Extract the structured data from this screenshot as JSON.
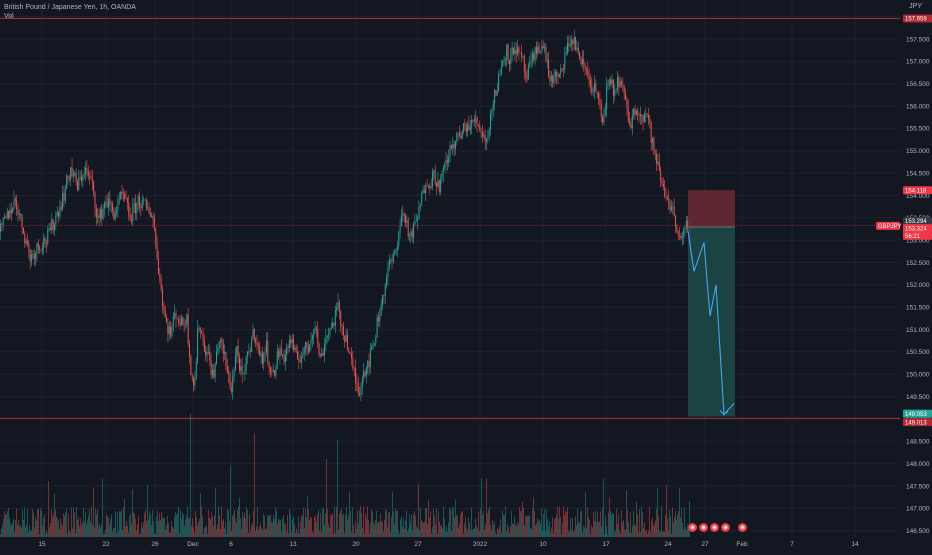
{
  "header": {
    "title": "British Pound / Japanese Yen, 1h, OANDA",
    "volume_label": "Vol",
    "currency": "JPY"
  },
  "colors": {
    "background": "#131722",
    "grid": "#1e222d",
    "up": "#26a69a",
    "down": "#ef5350",
    "resistance_line": "#b22833",
    "stop_zone": "#6b2a33",
    "target_zone": "#1c4b47",
    "projection": "#42a5f5"
  },
  "chart_data": {
    "type": "candlestick",
    "symbol": "GBPJPY",
    "timeframe": "1h",
    "ylim": [
      146.4,
      158.15
    ],
    "xlim": [
      0,
      932
    ],
    "y_ticks": [
      "158.000",
      "157.500",
      "157.000",
      "156.500",
      "156.000",
      "155.500",
      "155.000",
      "154.500",
      "154.000",
      "153.500",
      "153.000",
      "152.500",
      "152.000",
      "151.500",
      "151.000",
      "150.500",
      "150.000",
      "149.500",
      "149.000",
      "148.500",
      "148.000",
      "147.500",
      "147.000",
      "146.500"
    ],
    "x_ticks": [
      {
        "label": "15",
        "pos": 42
      },
      {
        "label": "22",
        "pos": 106
      },
      {
        "label": "26",
        "pos": 155
      },
      {
        "label": "Dec",
        "pos": 193
      },
      {
        "label": "6",
        "pos": 231
      },
      {
        "label": "13",
        "pos": 293
      },
      {
        "label": "20",
        "pos": 356
      },
      {
        "label": "27",
        "pos": 418
      },
      {
        "label": "2022",
        "pos": 480
      },
      {
        "label": "10",
        "pos": 543
      },
      {
        "label": "17",
        "pos": 606
      },
      {
        "label": "24",
        "pos": 668
      },
      {
        "label": "27",
        "pos": 705
      },
      {
        "label": "Feb",
        "pos": 742
      },
      {
        "label": "7",
        "pos": 792
      },
      {
        "label": "14",
        "pos": 855
      }
    ],
    "price_path": [
      [
        0,
        153.2
      ],
      [
        8,
        153.6
      ],
      [
        15,
        153.9
      ],
      [
        22,
        153.3
      ],
      [
        30,
        152.6
      ],
      [
        38,
        152.9
      ],
      [
        46,
        153.0
      ],
      [
        55,
        153.5
      ],
      [
        63,
        154.0
      ],
      [
        70,
        154.6
      ],
      [
        77,
        154.2
      ],
      [
        84,
        154.6
      ],
      [
        91,
        154.3
      ],
      [
        98,
        153.4
      ],
      [
        105,
        153.9
      ],
      [
        114,
        153.6
      ],
      [
        122,
        154.0
      ],
      [
        130,
        153.5
      ],
      [
        138,
        153.9
      ],
      [
        146,
        153.7
      ],
      [
        152,
        153.6
      ],
      [
        156,
        152.8
      ],
      [
        160,
        152.0
      ],
      [
        165,
        151.2
      ],
      [
        170,
        150.9
      ],
      [
        175,
        151.4
      ],
      [
        181,
        151.1
      ],
      [
        186,
        151.3
      ],
      [
        190,
        150.2
      ],
      [
        194,
        149.7
      ],
      [
        198,
        151.2
      ],
      [
        203,
        150.7
      ],
      [
        208,
        150.4
      ],
      [
        213,
        149.9
      ],
      [
        218,
        150.8
      ],
      [
        223,
        150.5
      ],
      [
        227,
        150.0
      ],
      [
        231,
        149.7
      ],
      [
        236,
        150.6
      ],
      [
        242,
        149.8
      ],
      [
        248,
        150.5
      ],
      [
        254,
        151.0
      ],
      [
        260,
        150.3
      ],
      [
        266,
        150.6
      ],
      [
        272,
        149.9
      ],
      [
        278,
        150.5
      ],
      [
        284,
        150.4
      ],
      [
        290,
        150.8
      ],
      [
        296,
        150.3
      ],
      [
        302,
        150.5
      ],
      [
        308,
        150.6
      ],
      [
        314,
        151.2
      ],
      [
        320,
        150.3
      ],
      [
        326,
        150.9
      ],
      [
        332,
        151.1
      ],
      [
        337,
        151.5
      ],
      [
        342,
        151.0
      ],
      [
        346,
        150.8
      ],
      [
        350,
        150.3
      ],
      [
        354,
        150.0
      ],
      [
        358,
        149.6
      ],
      [
        362,
        150.0
      ],
      [
        366,
        150.2
      ],
      [
        370,
        150.4
      ],
      [
        374,
        150.8
      ],
      [
        378,
        151.3
      ],
      [
        382,
        151.7
      ],
      [
        386,
        152.2
      ],
      [
        390,
        152.5
      ],
      [
        394,
        152.6
      ],
      [
        398,
        153.2
      ],
      [
        402,
        153.6
      ],
      [
        406,
        153.4
      ],
      [
        410,
        153.0
      ],
      [
        414,
        153.3
      ],
      [
        418,
        153.6
      ],
      [
        422,
        154.0
      ],
      [
        426,
        154.4
      ],
      [
        430,
        154.3
      ],
      [
        434,
        154.5
      ],
      [
        438,
        154.2
      ],
      [
        442,
        154.4
      ],
      [
        446,
        154.8
      ],
      [
        450,
        155.0
      ],
      [
        454,
        155.2
      ],
      [
        458,
        155.3
      ],
      [
        462,
        155.4
      ],
      [
        466,
        155.6
      ],
      [
        470,
        155.5
      ],
      [
        474,
        155.7
      ],
      [
        478,
        155.6
      ],
      [
        482,
        155.4
      ],
      [
        486,
        155.2
      ],
      [
        490,
        155.8
      ],
      [
        494,
        156.2
      ],
      [
        498,
        156.6
      ],
      [
        502,
        157.0
      ],
      [
        506,
        157.3
      ],
      [
        510,
        157.0
      ],
      [
        514,
        157.4
      ],
      [
        518,
        157.1
      ],
      [
        522,
        157.0
      ],
      [
        526,
        156.6
      ],
      [
        530,
        156.9
      ],
      [
        534,
        157.1
      ],
      [
        538,
        157.4
      ],
      [
        542,
        157.3
      ],
      [
        546,
        157.1
      ],
      [
        550,
        156.5
      ],
      [
        554,
        156.7
      ],
      [
        558,
        156.5
      ],
      [
        562,
        156.9
      ],
      [
        566,
        157.2
      ],
      [
        570,
        157.5
      ],
      [
        574,
        157.4
      ],
      [
        578,
        157.2
      ],
      [
        582,
        156.9
      ],
      [
        586,
        156.8
      ],
      [
        590,
        156.5
      ],
      [
        594,
        156.4
      ],
      [
        598,
        156.1
      ],
      [
        602,
        155.6
      ],
      [
        606,
        156.3
      ],
      [
        610,
        156.5
      ],
      [
        614,
        156.3
      ],
      [
        618,
        156.6
      ],
      [
        622,
        156.4
      ],
      [
        626,
        155.9
      ],
      [
        630,
        155.6
      ],
      [
        634,
        155.9
      ],
      [
        638,
        156.0
      ],
      [
        642,
        155.7
      ],
      [
        646,
        155.9
      ],
      [
        650,
        155.4
      ],
      [
        654,
        154.9
      ],
      [
        658,
        154.6
      ],
      [
        662,
        154.2
      ],
      [
        666,
        154.0
      ],
      [
        670,
        153.8
      ],
      [
        674,
        153.5
      ],
      [
        678,
        153.2
      ],
      [
        682,
        153.0
      ],
      [
        686,
        153.3
      ],
      [
        690,
        152.8
      ]
    ],
    "volume_bars_count": 690,
    "volume_spikes": [
      {
        "pos": 190,
        "height": 0.95
      },
      {
        "pos": 254,
        "height": 0.8
      },
      {
        "pos": 230,
        "height": 0.55
      },
      {
        "pos": 326,
        "height": 0.6
      },
      {
        "pos": 337,
        "height": 0.75
      },
      {
        "pos": 418,
        "height": 0.4
      },
      {
        "pos": 486,
        "height": 0.45
      },
      {
        "pos": 102,
        "height": 0.45
      },
      {
        "pos": 147,
        "height": 0.4
      },
      {
        "pos": 603,
        "height": 0.45
      },
      {
        "pos": 666,
        "height": 0.4
      },
      {
        "pos": 679,
        "height": 0.38
      }
    ],
    "horizontal_lines": [
      {
        "name": "resistance",
        "price": 157.959
      },
      {
        "name": "support",
        "price": 149.013
      }
    ],
    "current_price_line": 153.324,
    "position": {
      "type": "short",
      "entry": 153.294,
      "stop": 154.118,
      "target": 149.053,
      "x_start": 688,
      "x_end": 735
    },
    "projection_path": [
      [
        688,
        153.2
      ],
      [
        694,
        152.3
      ],
      [
        704,
        152.95
      ],
      [
        710,
        151.3
      ],
      [
        716,
        152.0
      ],
      [
        724,
        149.1
      ],
      [
        734,
        149.35
      ]
    ],
    "price_labels": [
      {
        "text": "157.959",
        "price": 157.959,
        "color": "#b22833"
      },
      {
        "text": "154.118",
        "price": 154.118,
        "color": "#f23645"
      },
      {
        "text": "153.294",
        "price": 153.43,
        "color": "#363a45"
      },
      {
        "text": "153.324",
        "price": 153.27,
        "color": "#f23645"
      },
      {
        "text": "56:21",
        "price": 153.1,
        "color": "#f23645"
      },
      {
        "text": "149.053",
        "price": 149.12,
        "color": "#26a69a"
      },
      {
        "text": "149.013",
        "price": 148.93,
        "color": "#b22833"
      }
    ],
    "symbol_tag": "GBPJPY",
    "event_icons": 5
  }
}
